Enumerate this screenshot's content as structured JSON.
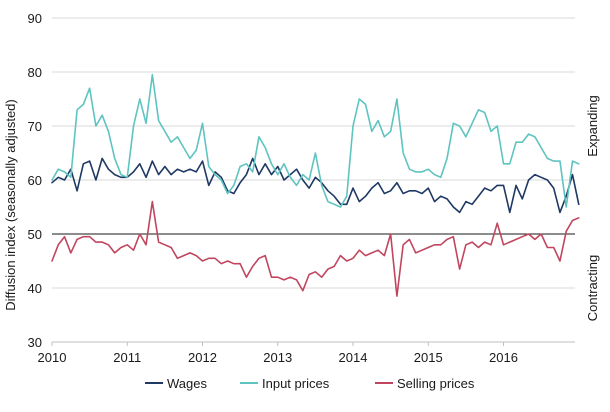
{
  "chart_data": {
    "type": "line",
    "title": "",
    "xlabel": "",
    "ylabel": "Diffusion index (seasonally adjusted)",
    "xlim": [
      2010,
      2016.95
    ],
    "ylim": [
      30,
      90
    ],
    "yticks": [
      30,
      40,
      50,
      60,
      70,
      80,
      90
    ],
    "xticks": [
      {
        "value": 2010,
        "label": "2010"
      },
      {
        "value": 2011,
        "label": "2011"
      },
      {
        "value": 2012,
        "label": "2012"
      },
      {
        "value": 2013,
        "label": "2013"
      },
      {
        "value": 2014,
        "label": "2014"
      },
      {
        "value": 2015,
        "label": "2015"
      },
      {
        "value": 2016,
        "label": "2016"
      }
    ],
    "grid": "horizontal",
    "reference_line": 50,
    "right_annotations": [
      {
        "label": "Expanding",
        "y": 70
      },
      {
        "label": "Contracting",
        "y": 40
      }
    ],
    "legend": {
      "position": "bottom",
      "entries": [
        "Wages",
        "Input prices",
        "Selling prices"
      ]
    },
    "x_start": 2010,
    "x_step": 0.0833333,
    "series": [
      {
        "name": "Wages",
        "color": "#1f3864",
        "values": [
          59.5,
          60.5,
          60.0,
          62.0,
          58.0,
          63.0,
          63.5,
          60.0,
          64.0,
          62.0,
          61.0,
          60.5,
          60.5,
          61.5,
          63.0,
          60.5,
          63.5,
          61.0,
          62.5,
          61.0,
          62.0,
          61.5,
          62.0,
          61.5,
          63.5,
          59.0,
          61.5,
          60.5,
          58.0,
          57.5,
          59.5,
          61.0,
          64.0,
          61.0,
          63.0,
          61.0,
          62.5,
          60.0,
          61.0,
          62.0,
          60.0,
          58.5,
          60.5,
          59.5,
          58.0,
          57.0,
          55.5,
          55.5,
          58.5,
          56.0,
          57.0,
          58.5,
          59.5,
          57.5,
          58.0,
          59.5,
          57.5,
          58.0,
          58.0,
          57.5,
          58.5,
          56.0,
          57.0,
          56.5,
          55.0,
          54.0,
          56.0,
          55.5,
          57.0,
          58.5,
          58.0,
          59.0,
          59.0,
          54.0,
          59.0,
          56.5,
          60.0,
          61.0,
          60.5,
          60.0,
          58.5,
          54.0,
          57.0,
          61.0,
          55.5
        ]
      },
      {
        "name": "Input prices",
        "color": "#5ec4c0",
        "values": [
          60.0,
          62.0,
          61.5,
          60.5,
          73.0,
          74.0,
          77.0,
          70.0,
          72.0,
          69.0,
          64.0,
          61.0,
          60.5,
          70.0,
          75.0,
          70.5,
          79.5,
          71.0,
          69.0,
          67.0,
          68.0,
          66.0,
          64.0,
          65.5,
          70.5,
          62.5,
          61.0,
          60.0,
          57.5,
          59.0,
          62.5,
          63.0,
          61.5,
          68.0,
          66.0,
          63.0,
          61.0,
          63.0,
          60.5,
          59.0,
          61.0,
          60.0,
          65.0,
          59.0,
          56.0,
          55.5,
          55.0,
          57.0,
          70.0,
          75.0,
          74.0,
          69.0,
          71.0,
          68.0,
          69.0,
          75.0,
          65.0,
          62.0,
          61.5,
          61.5,
          62.0,
          61.0,
          60.5,
          64.0,
          70.5,
          70.0,
          68.0,
          70.5,
          73.0,
          72.5,
          69.0,
          70.0,
          63.0,
          63.0,
          67.0,
          67.0,
          68.5,
          68.0,
          66.0,
          64.0,
          63.5,
          63.5,
          55.0,
          63.5,
          63.0
        ]
      },
      {
        "name": "Selling prices",
        "color": "#c0465f",
        "values": [
          45.0,
          48.0,
          49.5,
          46.5,
          49.0,
          49.5,
          49.5,
          48.5,
          48.5,
          48.0,
          46.5,
          47.5,
          48.0,
          47.0,
          50.0,
          48.0,
          56.0,
          48.5,
          48.0,
          47.5,
          45.5,
          46.0,
          46.5,
          46.0,
          45.0,
          45.5,
          45.5,
          44.5,
          45.0,
          44.5,
          44.5,
          42.0,
          44.0,
          45.5,
          46.0,
          42.0,
          42.0,
          41.5,
          42.0,
          41.5,
          39.5,
          42.5,
          43.0,
          42.0,
          43.5,
          44.0,
          46.0,
          45.0,
          45.5,
          47.0,
          46.0,
          46.5,
          47.0,
          46.0,
          50.0,
          38.5,
          48.0,
          49.0,
          46.5,
          47.0,
          47.5,
          48.0,
          48.0,
          49.0,
          49.5,
          43.5,
          48.0,
          48.5,
          47.5,
          48.5,
          48.0,
          52.0,
          48.0,
          48.5,
          49.0,
          49.5,
          50.0,
          49.0,
          50.0,
          47.5,
          47.5,
          45.0,
          50.5,
          52.5,
          53.0
        ]
      }
    ]
  }
}
